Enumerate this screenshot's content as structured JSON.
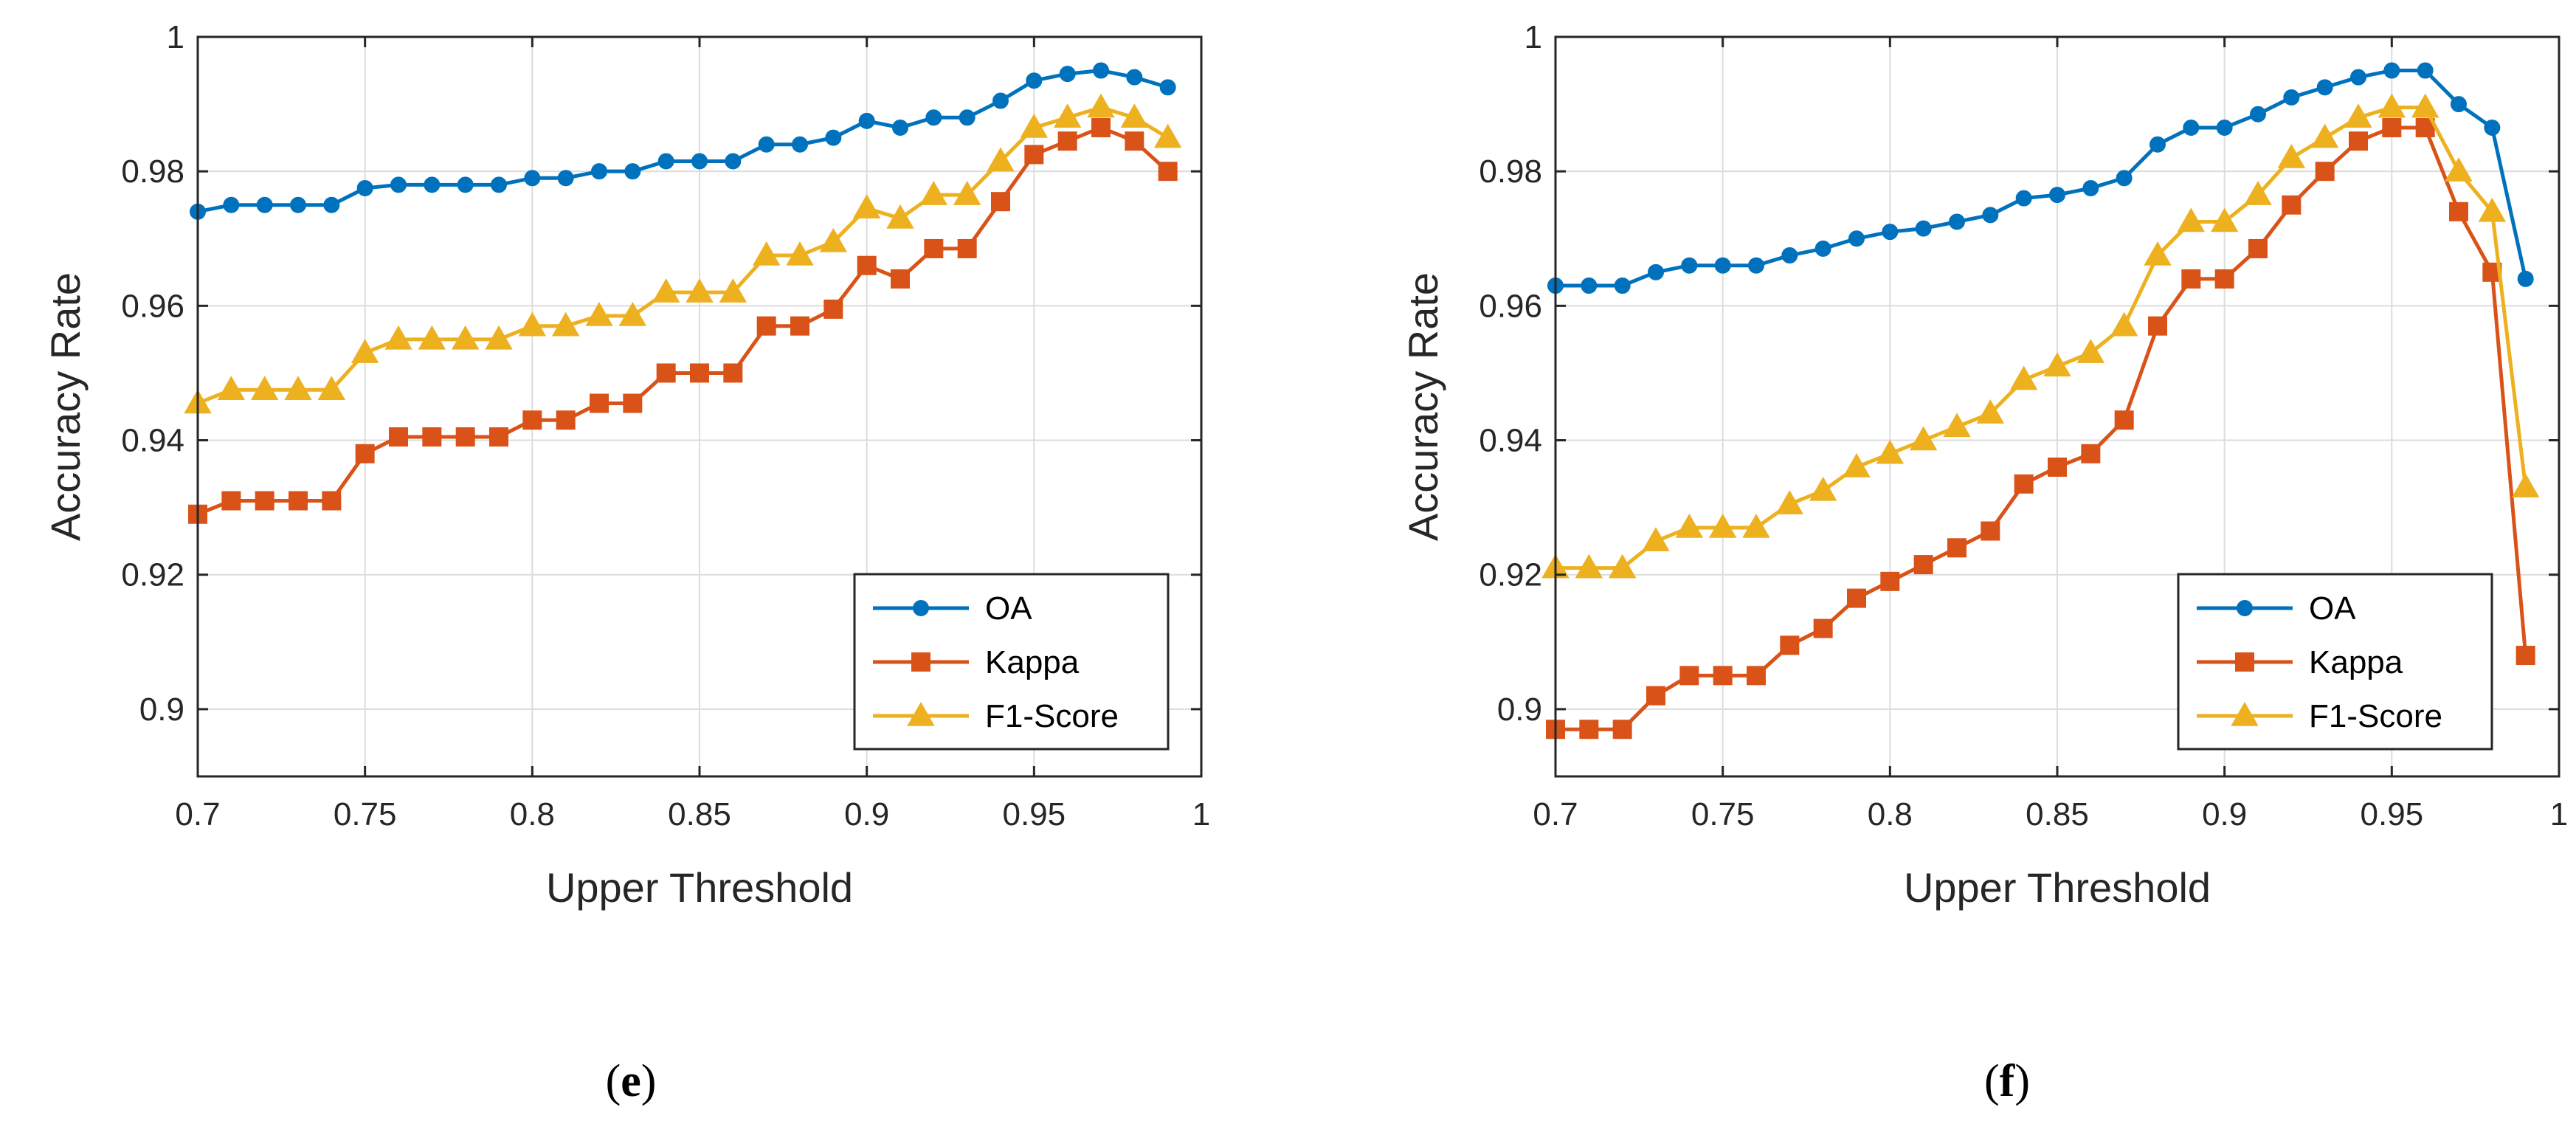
{
  "colors": {
    "oa": "#0072BD",
    "kappa": "#D95319",
    "f1": "#EDB120",
    "grid": "#dcdcdc",
    "axis": "#262626"
  },
  "chart_data": [
    {
      "id": "e",
      "type": "line",
      "panel_label": "e",
      "panel_open": "(",
      "panel_close": ")",
      "xlabel": "Upper Threshold",
      "ylabel": "Accuracy Rate",
      "xlim": [
        0.7,
        1
      ],
      "ylim": [
        0.89,
        1
      ],
      "xticks": [
        0.7,
        0.75,
        0.8,
        0.85,
        0.9,
        0.95,
        1
      ],
      "xtick_labels": [
        "0.7",
        "0.75",
        "0.8",
        "0.85",
        "0.9",
        "0.95",
        "1"
      ],
      "yticks": [
        0.9,
        0.92,
        0.94,
        0.96,
        0.98,
        1
      ],
      "ytick_labels": [
        "0.9",
        "0.92",
        "0.94",
        "0.96",
        "0.98",
        "1"
      ],
      "grid": true,
      "legend_position": "bottom-right",
      "x": [
        0.7,
        0.71,
        0.72,
        0.73,
        0.74,
        0.75,
        0.76,
        0.77,
        0.78,
        0.79,
        0.8,
        0.81,
        0.82,
        0.83,
        0.84,
        0.85,
        0.86,
        0.87,
        0.88,
        0.89,
        0.9,
        0.91,
        0.92,
        0.93,
        0.94,
        0.95,
        0.96,
        0.97,
        0.98,
        0.99
      ],
      "series": [
        {
          "name": "OA",
          "key": "oa",
          "marker": "circle",
          "values": [
            0.974,
            0.975,
            0.975,
            0.975,
            0.975,
            0.9775,
            0.978,
            0.978,
            0.978,
            0.978,
            0.979,
            0.979,
            0.98,
            0.98,
            0.9815,
            0.9815,
            0.9815,
            0.984,
            0.984,
            0.985,
            0.9875,
            0.9865,
            0.988,
            0.988,
            0.9905,
            0.9935,
            0.9945,
            0.995,
            0.994,
            0.9925
          ]
        },
        {
          "name": "Kappa",
          "key": "kappa",
          "marker": "square",
          "values": [
            0.929,
            0.931,
            0.931,
            0.931,
            0.931,
            0.938,
            0.9405,
            0.9405,
            0.9405,
            0.9405,
            0.943,
            0.943,
            0.9455,
            0.9455,
            0.95,
            0.95,
            0.95,
            0.957,
            0.957,
            0.9595,
            0.966,
            0.964,
            0.9685,
            0.9685,
            0.9755,
            0.9825,
            0.9845,
            0.9865,
            0.9845,
            0.98
          ]
        },
        {
          "name": "F1-Score",
          "key": "f1",
          "marker": "triangle",
          "values": [
            0.9455,
            0.9475,
            0.9475,
            0.9475,
            0.9475,
            0.953,
            0.955,
            0.955,
            0.955,
            0.955,
            0.957,
            0.957,
            0.9585,
            0.9585,
            0.962,
            0.962,
            0.962,
            0.9675,
            0.9675,
            0.9695,
            0.9745,
            0.973,
            0.9765,
            0.9765,
            0.9815,
            0.9865,
            0.988,
            0.9895,
            0.988,
            0.985
          ]
        }
      ]
    },
    {
      "id": "f",
      "type": "line",
      "panel_label": "f",
      "panel_open": "(",
      "panel_close": ")",
      "xlabel": "Upper Threshold",
      "ylabel": "Accuracy Rate",
      "xlim": [
        0.7,
        1
      ],
      "ylim": [
        0.89,
        1
      ],
      "xticks": [
        0.7,
        0.75,
        0.8,
        0.85,
        0.9,
        0.95,
        1
      ],
      "xtick_labels": [
        "0.7",
        "0.75",
        "0.8",
        "0.85",
        "0.9",
        "0.95",
        "1"
      ],
      "yticks": [
        0.9,
        0.92,
        0.94,
        0.96,
        0.98,
        1
      ],
      "ytick_labels": [
        "0.9",
        "0.92",
        "0.94",
        "0.96",
        "0.98",
        "1"
      ],
      "grid": true,
      "legend_position": "bottom-right",
      "x": [
        0.7,
        0.71,
        0.72,
        0.73,
        0.74,
        0.75,
        0.76,
        0.77,
        0.78,
        0.79,
        0.8,
        0.81,
        0.82,
        0.83,
        0.84,
        0.85,
        0.86,
        0.87,
        0.88,
        0.89,
        0.9,
        0.91,
        0.92,
        0.93,
        0.94,
        0.95,
        0.96,
        0.97,
        0.98,
        0.99
      ],
      "series": [
        {
          "name": "OA",
          "key": "oa",
          "marker": "circle",
          "values": [
            0.963,
            0.963,
            0.963,
            0.965,
            0.966,
            0.966,
            0.966,
            0.9675,
            0.9685,
            0.97,
            0.971,
            0.9715,
            0.9725,
            0.9735,
            0.976,
            0.9765,
            0.9775,
            0.979,
            0.984,
            0.9865,
            0.9865,
            0.9885,
            0.991,
            0.9925,
            0.994,
            0.995,
            0.995,
            0.99,
            0.9865,
            0.964
          ]
        },
        {
          "name": "Kappa",
          "key": "kappa",
          "marker": "square",
          "values": [
            0.897,
            0.897,
            0.897,
            0.902,
            0.905,
            0.905,
            0.905,
            0.9095,
            0.912,
            0.9165,
            0.919,
            0.9215,
            0.924,
            0.9265,
            0.9335,
            0.936,
            0.938,
            0.943,
            0.957,
            0.964,
            0.964,
            0.9685,
            0.975,
            0.98,
            0.9845,
            0.9865,
            0.9865,
            0.974,
            0.965,
            0.908
          ]
        },
        {
          "name": "F1-Score",
          "key": "f1",
          "marker": "triangle",
          "values": [
            0.921,
            0.921,
            0.921,
            0.925,
            0.927,
            0.927,
            0.927,
            0.9305,
            0.9325,
            0.936,
            0.938,
            0.94,
            0.942,
            0.944,
            0.949,
            0.951,
            0.953,
            0.957,
            0.9675,
            0.9725,
            0.9725,
            0.9765,
            0.982,
            0.985,
            0.988,
            0.9895,
            0.9895,
            0.98,
            0.974,
            0.933
          ]
        }
      ]
    }
  ]
}
